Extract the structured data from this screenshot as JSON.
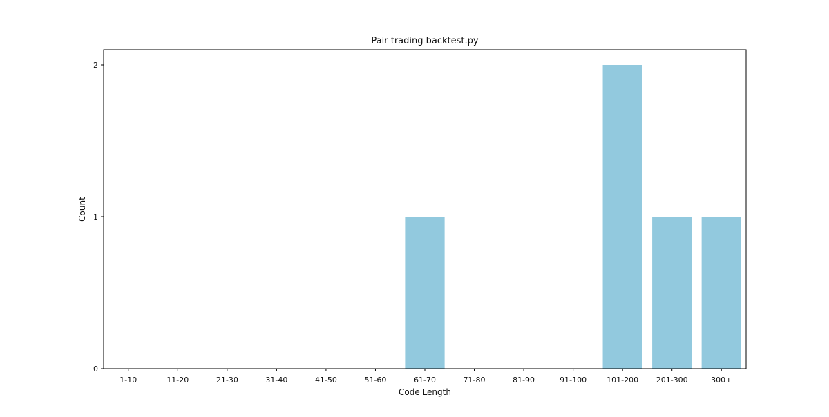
{
  "chart_data": {
    "type": "bar",
    "title": "Pair trading backtest.py",
    "xlabel": "Code Length",
    "ylabel": "Count",
    "categories": [
      "1-10",
      "11-20",
      "21-30",
      "31-40",
      "41-50",
      "51-60",
      "61-70",
      "71-80",
      "81-90",
      "91-100",
      "101-200",
      "201-300",
      "300+"
    ],
    "values": [
      0,
      0,
      0,
      0,
      0,
      0,
      1,
      0,
      0,
      0,
      2,
      1,
      1
    ],
    "ylim": [
      0,
      2.1
    ],
    "yticks": [
      0,
      1,
      2
    ],
    "bar_color": "#92c9de",
    "grid": false,
    "legend": "none"
  }
}
